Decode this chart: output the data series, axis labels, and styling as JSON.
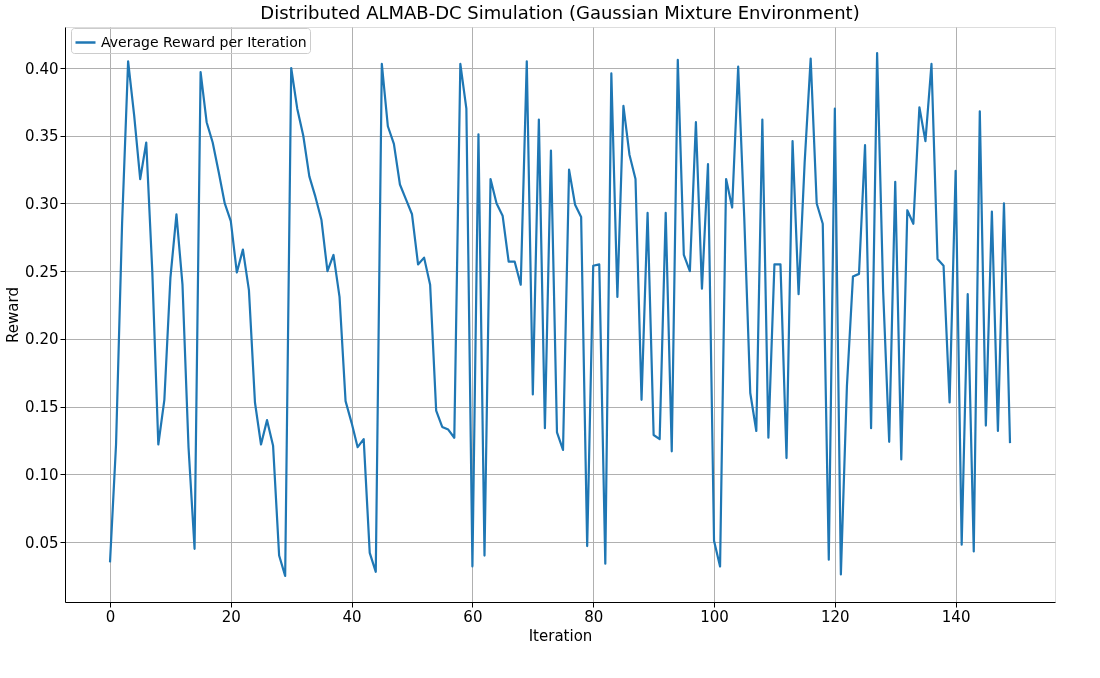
{
  "chart_data": {
    "type": "line",
    "title": "Distributed ALMAB-DC Simulation (Gaussian Mixture Environment)",
    "xlabel": "Iteration",
    "ylabel": "Reward",
    "x": [
      0,
      1,
      2,
      3,
      4,
      5,
      6,
      7,
      8,
      9,
      10,
      11,
      12,
      13,
      14,
      15,
      16,
      17,
      18,
      19,
      20,
      21,
      22,
      23,
      24,
      25,
      26,
      27,
      28,
      29,
      30,
      31,
      32,
      33,
      34,
      35,
      36,
      37,
      38,
      39,
      40,
      41,
      42,
      43,
      44,
      45,
      46,
      47,
      48,
      49,
      50,
      51,
      52,
      53,
      54,
      55,
      56,
      57,
      58,
      59,
      60,
      61,
      62,
      63,
      64,
      65,
      66,
      67,
      68,
      69,
      70,
      71,
      72,
      73,
      74,
      75,
      76,
      77,
      78,
      79,
      80,
      81,
      82,
      83,
      84,
      85,
      86,
      87,
      88,
      89,
      90,
      91,
      92,
      93,
      94,
      95,
      96,
      97,
      98,
      99,
      100,
      101,
      102,
      103,
      104,
      105,
      106,
      107,
      108,
      109,
      110,
      111,
      112,
      113,
      114,
      115,
      116,
      117,
      118,
      119,
      120,
      121,
      122,
      123,
      124,
      125,
      126,
      127,
      128,
      129,
      130,
      131,
      132,
      133,
      134,
      135,
      136,
      137,
      138,
      139,
      140,
      141,
      142,
      143,
      144,
      145,
      146,
      147,
      148,
      149
    ],
    "series": [
      {
        "name": "Average Reward per Iteration",
        "color": "#1f77b4",
        "values": [
          0.035,
          0.122,
          0.285,
          0.405,
          0.365,
          0.318,
          0.345,
          0.25,
          0.122,
          0.155,
          0.245,
          0.292,
          0.24,
          0.12,
          0.045,
          0.397,
          0.36,
          0.345,
          0.323,
          0.3,
          0.287,
          0.249,
          0.266,
          0.236,
          0.153,
          0.122,
          0.14,
          0.121,
          0.04,
          0.025,
          0.4,
          0.37,
          0.35,
          0.32,
          0.305,
          0.288,
          0.25,
          0.262,
          0.231,
          0.154,
          0.138,
          0.12,
          0.126,
          0.042,
          0.028,
          0.403,
          0.357,
          0.344,
          0.314,
          0.303,
          0.292,
          0.255,
          0.26,
          0.24,
          0.147,
          0.135,
          0.133,
          0.127,
          0.403,
          0.37,
          0.032,
          0.351,
          0.04,
          0.318,
          0.3,
          0.291,
          0.257,
          0.257,
          0.24,
          0.405,
          0.159,
          0.362,
          0.134,
          0.339,
          0.131,
          0.118,
          0.325,
          0.299,
          0.29,
          0.047,
          0.254,
          0.255,
          0.034,
          0.396,
          0.231,
          0.372,
          0.336,
          0.318,
          0.155,
          0.293,
          0.129,
          0.126,
          0.293,
          0.117,
          0.406,
          0.262,
          0.25,
          0.36,
          0.237,
          0.329,
          0.051,
          0.032,
          0.318,
          0.297,
          0.401,
          0.29,
          0.16,
          0.132,
          0.362,
          0.127,
          0.255,
          0.255,
          0.112,
          0.346,
          0.233,
          0.33,
          0.407,
          0.3,
          0.285,
          0.037,
          0.37,
          0.026,
          0.165,
          0.246,
          0.248,
          0.343,
          0.134,
          0.411,
          0.235,
          0.124,
          0.316,
          0.111,
          0.295,
          0.285,
          0.371,
          0.346,
          0.403,
          0.259,
          0.254,
          0.153,
          0.324,
          0.048,
          0.233,
          0.043,
          0.368,
          0.136,
          0.294,
          0.132,
          0.3,
          0.123
        ]
      }
    ],
    "xlim": [
      -7.45,
      156.45
    ],
    "xticks": [
      0,
      20,
      40,
      60,
      80,
      100,
      120,
      140
    ],
    "ylim": [
      0.0057,
      0.4303
    ],
    "yticks": [
      {
        "value": 0.05,
        "label": "0.05"
      },
      {
        "value": 0.1,
        "label": "0.10"
      },
      {
        "value": 0.15,
        "label": "0.15"
      },
      {
        "value": 0.2,
        "label": "0.20"
      },
      {
        "value": 0.25,
        "label": "0.25"
      },
      {
        "value": 0.3,
        "label": "0.30"
      },
      {
        "value": 0.35,
        "label": "0.35"
      },
      {
        "value": 0.4,
        "label": "0.40"
      }
    ],
    "grid": true,
    "legend": "top left",
    "marker": "none",
    "line_style": "solid"
  }
}
